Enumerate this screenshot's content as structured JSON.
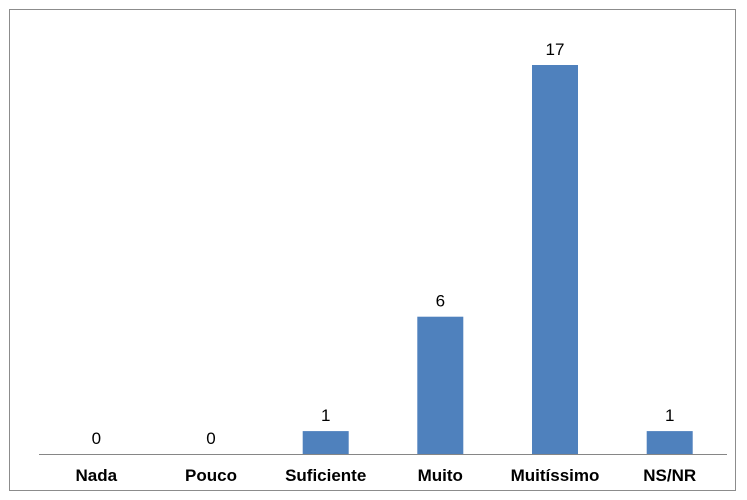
{
  "chart_data": {
    "type": "bar",
    "categories": [
      "Nada",
      "Pouco",
      "Suficiente",
      "Muito",
      "Muitíssimo",
      "NS/NR"
    ],
    "values": [
      0,
      0,
      1,
      6,
      17,
      1
    ],
    "data_labels": [
      "0",
      "0",
      "1",
      "6",
      "17",
      "1"
    ],
    "title": "",
    "xlabel": "",
    "ylabel": "",
    "ylim": [
      0,
      17
    ],
    "grid": false,
    "legend": "none",
    "colors": {
      "bar": "#4f81bd",
      "axis": "#868686",
      "border": "#8c8c8c"
    }
  }
}
